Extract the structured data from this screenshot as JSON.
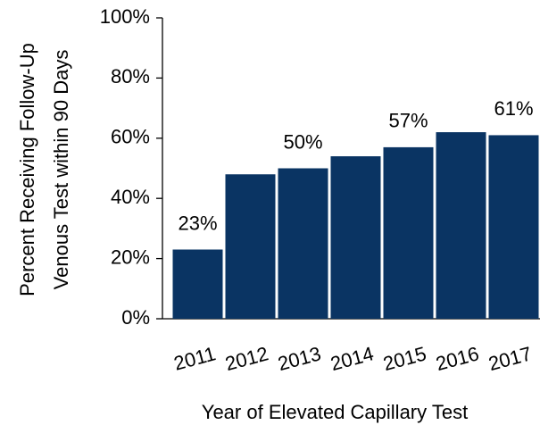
{
  "chart_data": {
    "type": "bar",
    "categories": [
      "2011",
      "2012",
      "2013",
      "2014",
      "2015",
      "2016",
      "2017"
    ],
    "values": [
      23,
      48,
      50,
      54,
      57,
      62,
      61
    ],
    "value_labels": [
      "23%",
      null,
      "50%",
      null,
      "57%",
      null,
      "61%"
    ],
    "color": "#0a3463",
    "ylabel": [
      "Percent Receiving Follow-Up",
      "Venous Test within 90 Days"
    ],
    "xlabel": "Year of Elevated Capillary Test",
    "ylim": [
      0,
      100
    ],
    "yticks": [
      {
        "value": 0,
        "label": "0%"
      },
      {
        "value": 20,
        "label": "20%"
      },
      {
        "value": 40,
        "label": "40%"
      },
      {
        "value": 60,
        "label": "60%"
      },
      {
        "value": 80,
        "label": "80%"
      },
      {
        "value": 100,
        "label": "100%"
      }
    ],
    "grid": false
  }
}
